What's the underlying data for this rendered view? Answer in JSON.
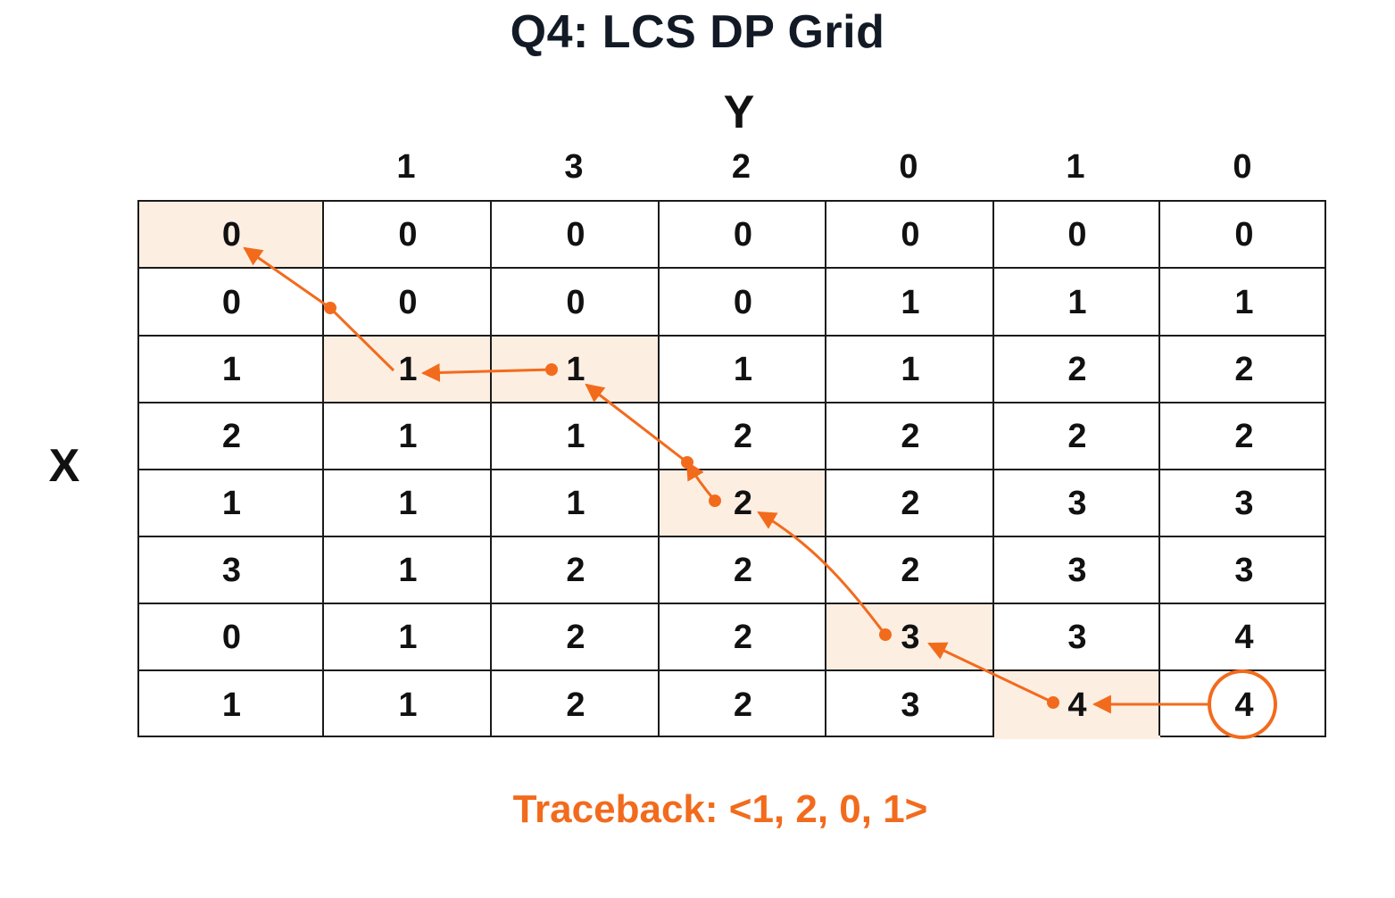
{
  "title": "Q4: LCS DP Grid",
  "y_axis_label": "Y",
  "x_axis_label": "X",
  "column_headers": [
    "",
    "1",
    "3",
    "2",
    "0",
    "1",
    "0"
  ],
  "grid": [
    [
      "0",
      "0",
      "0",
      "0",
      "0",
      "0",
      "0"
    ],
    [
      "0",
      "0",
      "0",
      "0",
      "1",
      "1",
      "1"
    ],
    [
      "1",
      "1",
      "1",
      "1",
      "1",
      "2",
      "2"
    ],
    [
      "2",
      "1",
      "1",
      "2",
      "2",
      "2",
      "2"
    ],
    [
      "1",
      "1",
      "1",
      "2",
      "2",
      "3",
      "3"
    ],
    [
      "3",
      "1",
      "2",
      "2",
      "2",
      "3",
      "3"
    ],
    [
      "0",
      "1",
      "2",
      "2",
      "3",
      "3",
      "4"
    ],
    [
      "1",
      "1",
      "2",
      "2",
      "3",
      "4",
      "4"
    ]
  ],
  "highlighted_cells": [
    [
      0,
      0
    ],
    [
      2,
      1
    ],
    [
      2,
      2
    ],
    [
      4,
      3
    ],
    [
      6,
      4
    ],
    [
      7,
      5
    ]
  ],
  "final_cell": [
    7,
    6
  ],
  "traceback_text": "Traceback: <1, 2, 0, 1>",
  "colors": {
    "accent": "#f26b1d",
    "highlight": "#fdeee2",
    "title": "#121a26",
    "grid_line": "#1a1a1a"
  }
}
